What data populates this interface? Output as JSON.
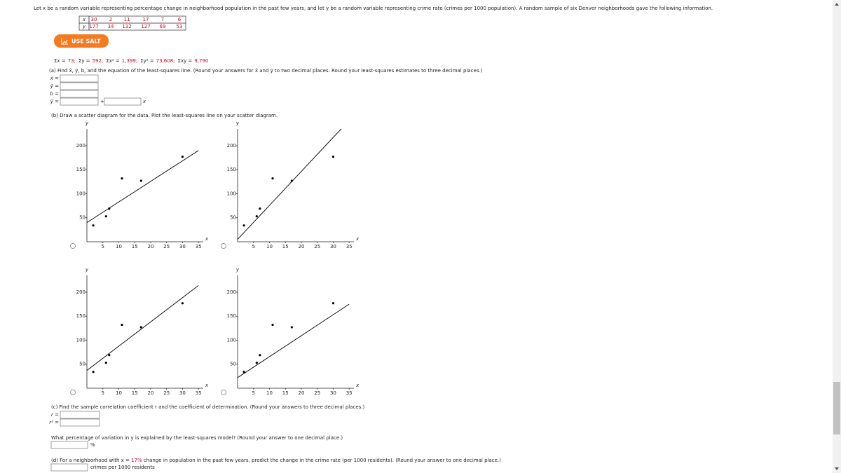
{
  "intro": "Let x be a random variable representing percentage change in neighborhood population in the past few years, and let y be a random variable representing crime rate (crimes per 1000 population). A random sample of six Denver neighborhoods gave the following information.",
  "table": {
    "x_header": "x",
    "y_header": "y",
    "x": [
      30,
      2,
      11,
      17,
      7,
      6
    ],
    "y": [
      177,
      34,
      132,
      127,
      69,
      53
    ]
  },
  "salt_button": "USE SALT",
  "sums": [
    {
      "label": "Σx =",
      "value": "73;"
    },
    {
      "label": "Σy =",
      "value": "592;"
    },
    {
      "label": "Σx² =",
      "value": "1,399;"
    },
    {
      "label": "Σy² =",
      "value": "73,608;"
    },
    {
      "label": "Σxy =",
      "value": "9,790"
    }
  ],
  "part_a": {
    "prompt": "(a) Find x̄, ȳ, b, and the equation of the least-squares line. (Round your answers for x̄ and ȳ to two decimal places. Round your least-squares estimates to three decimal places.)",
    "fields": [
      "x̄ =",
      "ȳ =",
      "b =",
      "ŷ ="
    ],
    "plus": "+",
    "x_suffix": "x"
  },
  "part_b": {
    "prompt": "(b) Draw a scatter diagram for the data. Plot the least-squares line on your scatter diagram.",
    "axes": {
      "x_label": "x",
      "y_label": "y",
      "xlim": [
        0,
        36.5
      ],
      "ylim": [
        0,
        235
      ],
      "xticks": [
        5,
        10,
        15,
        20,
        25,
        30,
        35
      ],
      "yticks": [
        50,
        100,
        150,
        200
      ]
    },
    "plots": [
      {
        "line": {
          "x": [
            0,
            35
          ],
          "y": [
            40,
            190
          ]
        }
      },
      {
        "line": {
          "x": [
            0,
            32.5
          ],
          "y": [
            5,
            235
          ]
        }
      },
      {
        "line": {
          "x": [
            0,
            35
          ],
          "y": [
            37,
            214
          ]
        }
      },
      {
        "line": {
          "x": [
            0,
            35
          ],
          "y": [
            22,
            175
          ]
        }
      }
    ]
  },
  "part_c": {
    "prompt": "(c) Find the sample correlation coefficient r and the coefficient of determination. (Round your answers to three decimal places.)",
    "fields": [
      "r =",
      "r² ="
    ],
    "percent_prompt": "What percentage of variation in y is explained by the least-squares model? (Round your answer to one decimal place.)",
    "percent_unit": "%"
  },
  "part_d": {
    "prompt_start": "(d) For a neighborhood with x = ",
    "x_value": "17%",
    "prompt_end": " change in population in the past few years, predict the change in the crime rate (per 1000 residents). (Round your answer to one decimal place.)",
    "unit": "crimes per 1000 residents"
  }
}
